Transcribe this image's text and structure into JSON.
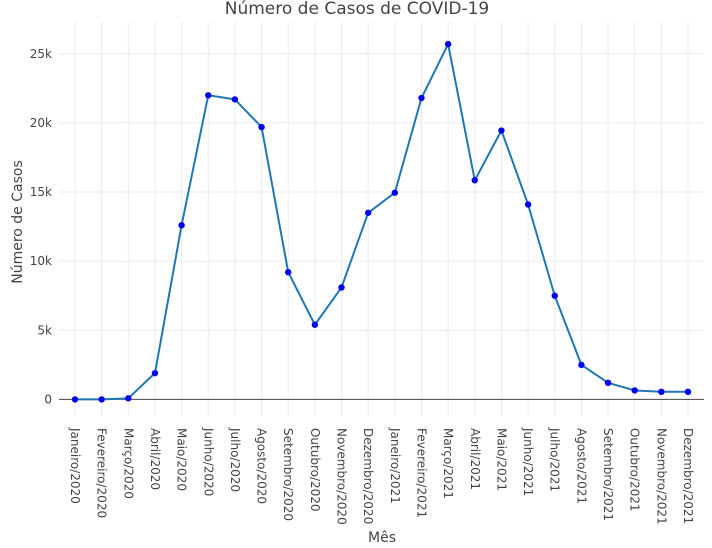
{
  "chart_data": {
    "type": "line",
    "title": "Número de Casos de COVID-19",
    "xlabel": "Mês",
    "ylabel": "Número de Casos",
    "ylim": [
      -1200,
      27300
    ],
    "y_ticks": [
      0,
      5000,
      10000,
      15000,
      20000,
      25000
    ],
    "y_tick_labels": [
      "0",
      "5k",
      "10k",
      "15k",
      "20k",
      "25k"
    ],
    "grid": true,
    "legend": "none",
    "line_color": "#1f77b4",
    "marker_color": "#0000ee",
    "categories": [
      "Janeiro/2020",
      "Fevereiro/2020",
      "Março/2020",
      "Abril/2020",
      "Maio/2020",
      "Junho/2020",
      "Julho/2020",
      "Agosto/2020",
      "Setembro/2020",
      "Outubro/2020",
      "Novembro/2020",
      "Dezembro/2020",
      "Janeiro/2021",
      "Fevereiro/2021",
      "Março/2021",
      "Abril/2021",
      "Maio/2021",
      "Junho/2021",
      "Julho/2021",
      "Agosto/2021",
      "Setembro/2021",
      "Outubro/2021",
      "Novembro/2021",
      "Dezembro/2021"
    ],
    "series": [
      {
        "values": [
          0,
          0,
          80,
          1900,
          12600,
          22000,
          21700,
          19700,
          9200,
          5400,
          8100,
          13500,
          14950,
          21800,
          25700,
          15850,
          19450,
          14100,
          7500,
          2500,
          1200,
          650,
          550,
          550
        ]
      }
    ]
  }
}
